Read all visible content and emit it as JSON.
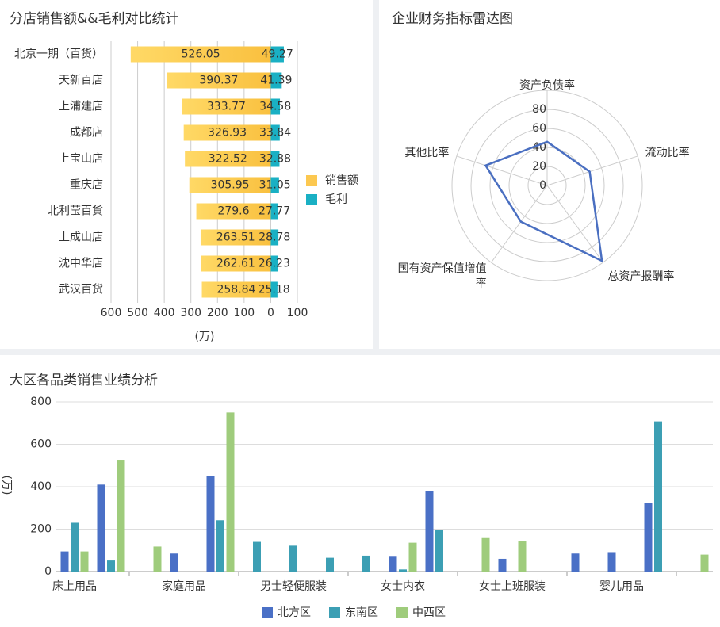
{
  "chart_data": [
    {
      "type": "bar",
      "orientation": "horizontal",
      "title": "分店销售额&&毛利对比统计",
      "xlabel": "(万)",
      "categories": [
        "北京一期（百货）",
        "天新百店",
        "上浦建店",
        "成都店",
        "上宝山店",
        "重庆店",
        "北利莹百貨",
        "上成山店",
        "沈中华店",
        "武汉百货"
      ],
      "series": [
        {
          "name": "销售额",
          "color": "#fcc850",
          "mirrored": true,
          "values": [
            526.05,
            390.37,
            333.77,
            326.93,
            322.52,
            305.95,
            279.6,
            263.51,
            262.61,
            258.84
          ]
        },
        {
          "name": "毛利",
          "color": "#1ab0c4",
          "values": [
            49.27,
            41.39,
            34.58,
            33.84,
            32.88,
            31.05,
            27.77,
            28.78,
            26.23,
            25.18
          ]
        }
      ],
      "xlim": [
        -600,
        100
      ],
      "xticks": [
        {
          "value": -600,
          "label": "600"
        },
        {
          "value": -500,
          "label": "500"
        },
        {
          "value": -400,
          "label": "400"
        },
        {
          "value": -300,
          "label": "300"
        },
        {
          "value": -200,
          "label": "200"
        },
        {
          "value": -100,
          "label": "100"
        },
        0,
        100
      ],
      "grid": true,
      "legend": "right"
    },
    {
      "type": "radar",
      "title": "企业财务指标雷达图",
      "indicators": [
        "资产负债率",
        "流动比率",
        "总资产报酬率",
        "国有资产保值增值率",
        "其他比率"
      ],
      "rlim": [
        0,
        100
      ],
      "rticks": [
        0,
        20,
        40,
        60,
        80
      ],
      "series": [
        {
          "color": "#4a6fc1",
          "values": [
            46,
            47,
            98,
            47,
            68
          ]
        }
      ]
    },
    {
      "type": "bar",
      "title": "大区各品类销售业绩分析",
      "ylabel": "(万)",
      "categories": [
        "床上用品",
        null,
        null,
        "家庭用品",
        null,
        null,
        "男士轻便服装",
        null,
        null,
        "女士内衣",
        null,
        null,
        "女士上班服装",
        null,
        null,
        "婴儿用品",
        null,
        null
      ],
      "series": [
        {
          "name": "北方区",
          "color": "#4a70c6",
          "values": [
            95,
            410,
            null,
            85,
            452,
            null,
            null,
            null,
            null,
            70,
            378,
            null,
            60,
            null,
            85,
            88,
            325,
            null
          ]
        },
        {
          "name": "东南区",
          "color": "#3c9fb4",
          "values": [
            230,
            52,
            null,
            null,
            242,
            140,
            122,
            65,
            75,
            10,
            196,
            null,
            null,
            null,
            null,
            null,
            708,
            null
          ]
        },
        {
          "name": "中西区",
          "color": "#9fcc7c",
          "values": [
            95,
            527,
            118,
            null,
            750,
            null,
            null,
            null,
            null,
            136,
            null,
            158,
            142,
            null,
            null,
            null,
            null,
            80
          ]
        }
      ],
      "ylim": [
        0,
        800
      ],
      "yticks": [
        0,
        200,
        400,
        600,
        800
      ],
      "grid": true,
      "legend": "bottom"
    }
  ]
}
